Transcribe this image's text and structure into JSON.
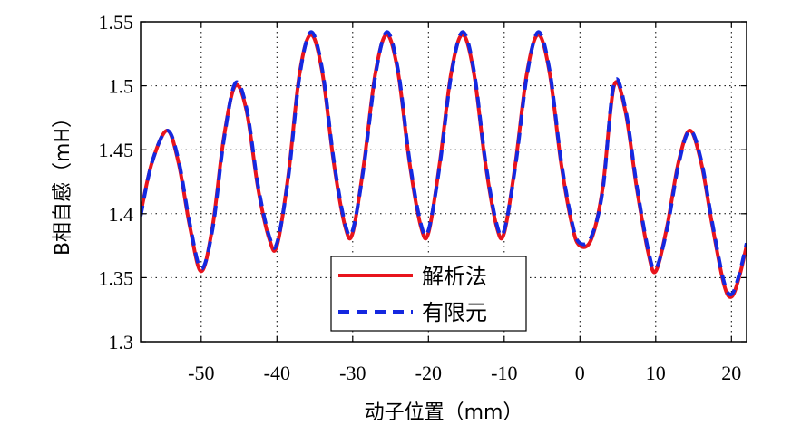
{
  "chart_data": {
    "type": "line",
    "title": "",
    "xlabel": "动子位置（mm）",
    "ylabel": "B相自感（mH）",
    "xlim": [
      -58,
      22
    ],
    "ylim": [
      1.3,
      1.55
    ],
    "grid": true,
    "legend_position": "bottom-center",
    "x_ticks": [
      -50,
      -40,
      -30,
      -20,
      -10,
      0,
      10,
      20
    ],
    "y_ticks": [
      1.3,
      1.35,
      1.4,
      1.45,
      1.5,
      1.55
    ],
    "x_tick_labels": [
      "-50",
      "-40",
      "-30",
      "-20",
      "-10",
      "0",
      "10",
      "20"
    ],
    "y_tick_labels": [
      "1.3",
      "1.35",
      "1.4",
      "1.45",
      "1.5",
      "1.55"
    ],
    "series": [
      {
        "name": "解析法",
        "color": "#e8141c",
        "style": "solid",
        "x": [
          -58,
          -56.5,
          -54.5,
          -53,
          -51.5,
          -50,
          -48.5,
          -47,
          -45.5,
          -44,
          -42.5,
          -41,
          -40,
          -38.5,
          -37,
          -35.5,
          -34,
          -32.5,
          -31,
          -30,
          -28.5,
          -27,
          -25.5,
          -24,
          -22.5,
          -21,
          -20,
          -18.5,
          -17,
          -15.5,
          -14,
          -12.5,
          -11,
          -10,
          -8.5,
          -7,
          -5.5,
          -4,
          -2.5,
          -1,
          0,
          1.5,
          3,
          4.5,
          6,
          7.5,
          9,
          10,
          11.5,
          13,
          14.5,
          16,
          17.5,
          19,
          20,
          21,
          22
        ],
        "y": [
          1.4,
          1.44,
          1.465,
          1.44,
          1.39,
          1.355,
          1.39,
          1.46,
          1.5,
          1.48,
          1.42,
          1.38,
          1.375,
          1.43,
          1.51,
          1.54,
          1.51,
          1.44,
          1.39,
          1.385,
          1.44,
          1.51,
          1.54,
          1.51,
          1.44,
          1.39,
          1.385,
          1.44,
          1.51,
          1.54,
          1.51,
          1.44,
          1.39,
          1.385,
          1.44,
          1.51,
          1.54,
          1.51,
          1.44,
          1.39,
          1.375,
          1.38,
          1.42,
          1.5,
          1.48,
          1.42,
          1.37,
          1.355,
          1.39,
          1.44,
          1.465,
          1.44,
          1.39,
          1.345,
          1.335,
          1.35,
          1.375
        ]
      },
      {
        "name": "有限元",
        "color": "#1428e0",
        "style": "dashed",
        "x": [
          -58,
          -56.5,
          -54.5,
          -53,
          -51.5,
          -50,
          -48.5,
          -47,
          -45.5,
          -44,
          -42.5,
          -41,
          -40,
          -38.5,
          -37,
          -35.5,
          -34,
          -32.5,
          -31,
          -30,
          -28.5,
          -27,
          -25.5,
          -24,
          -22.5,
          -21,
          -20,
          -18.5,
          -17,
          -15.5,
          -14,
          -12.5,
          -11,
          -10,
          -8.5,
          -7,
          -5.5,
          -4,
          -2.5,
          -1,
          0,
          1.5,
          3,
          4.5,
          6,
          7.5,
          9,
          10,
          11.5,
          13,
          14.5,
          16,
          17.5,
          19,
          20,
          21,
          22
        ],
        "y": [
          1.398,
          1.44,
          1.465,
          1.442,
          1.392,
          1.357,
          1.388,
          1.458,
          1.502,
          1.482,
          1.422,
          1.382,
          1.377,
          1.428,
          1.508,
          1.542,
          1.512,
          1.442,
          1.392,
          1.387,
          1.438,
          1.508,
          1.542,
          1.512,
          1.442,
          1.392,
          1.387,
          1.438,
          1.508,
          1.542,
          1.512,
          1.442,
          1.392,
          1.387,
          1.438,
          1.508,
          1.542,
          1.512,
          1.442,
          1.392,
          1.377,
          1.382,
          1.418,
          1.502,
          1.482,
          1.422,
          1.372,
          1.357,
          1.388,
          1.438,
          1.465,
          1.442,
          1.392,
          1.347,
          1.337,
          1.352,
          1.377
        ]
      }
    ]
  }
}
